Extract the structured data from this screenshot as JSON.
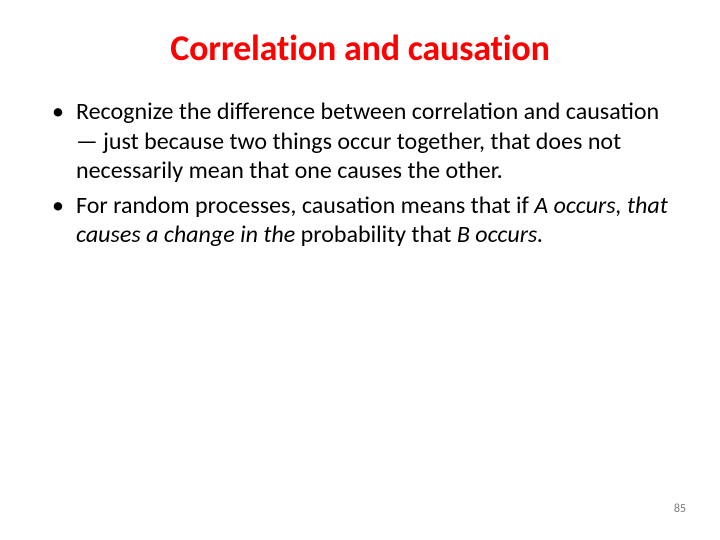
{
  "title": {
    "text": "Correlation and causation",
    "color": "#ff0000",
    "fontsize": 36
  },
  "body": {
    "color": "#000000",
    "fontsize": 24,
    "bullets": [
      {
        "segments": [
          {
            "text": "Recognize the difference between correlation and causation — just because two things occur together, that does not necessarily mean that one causes the other.",
            "italic": false
          }
        ]
      },
      {
        "segments": [
          {
            "text": "For random processes, causation means that if ",
            "italic": false
          },
          {
            "text": "A occurs, that causes a change in the",
            "italic": true
          },
          {
            "text": " probability that ",
            "italic": false
          },
          {
            "text": "B occurs.",
            "italic": true
          }
        ]
      }
    ]
  },
  "page_number": {
    "text": "85",
    "color": "#7f7f7f",
    "fontsize": 12
  },
  "background_color": "#ffffff"
}
